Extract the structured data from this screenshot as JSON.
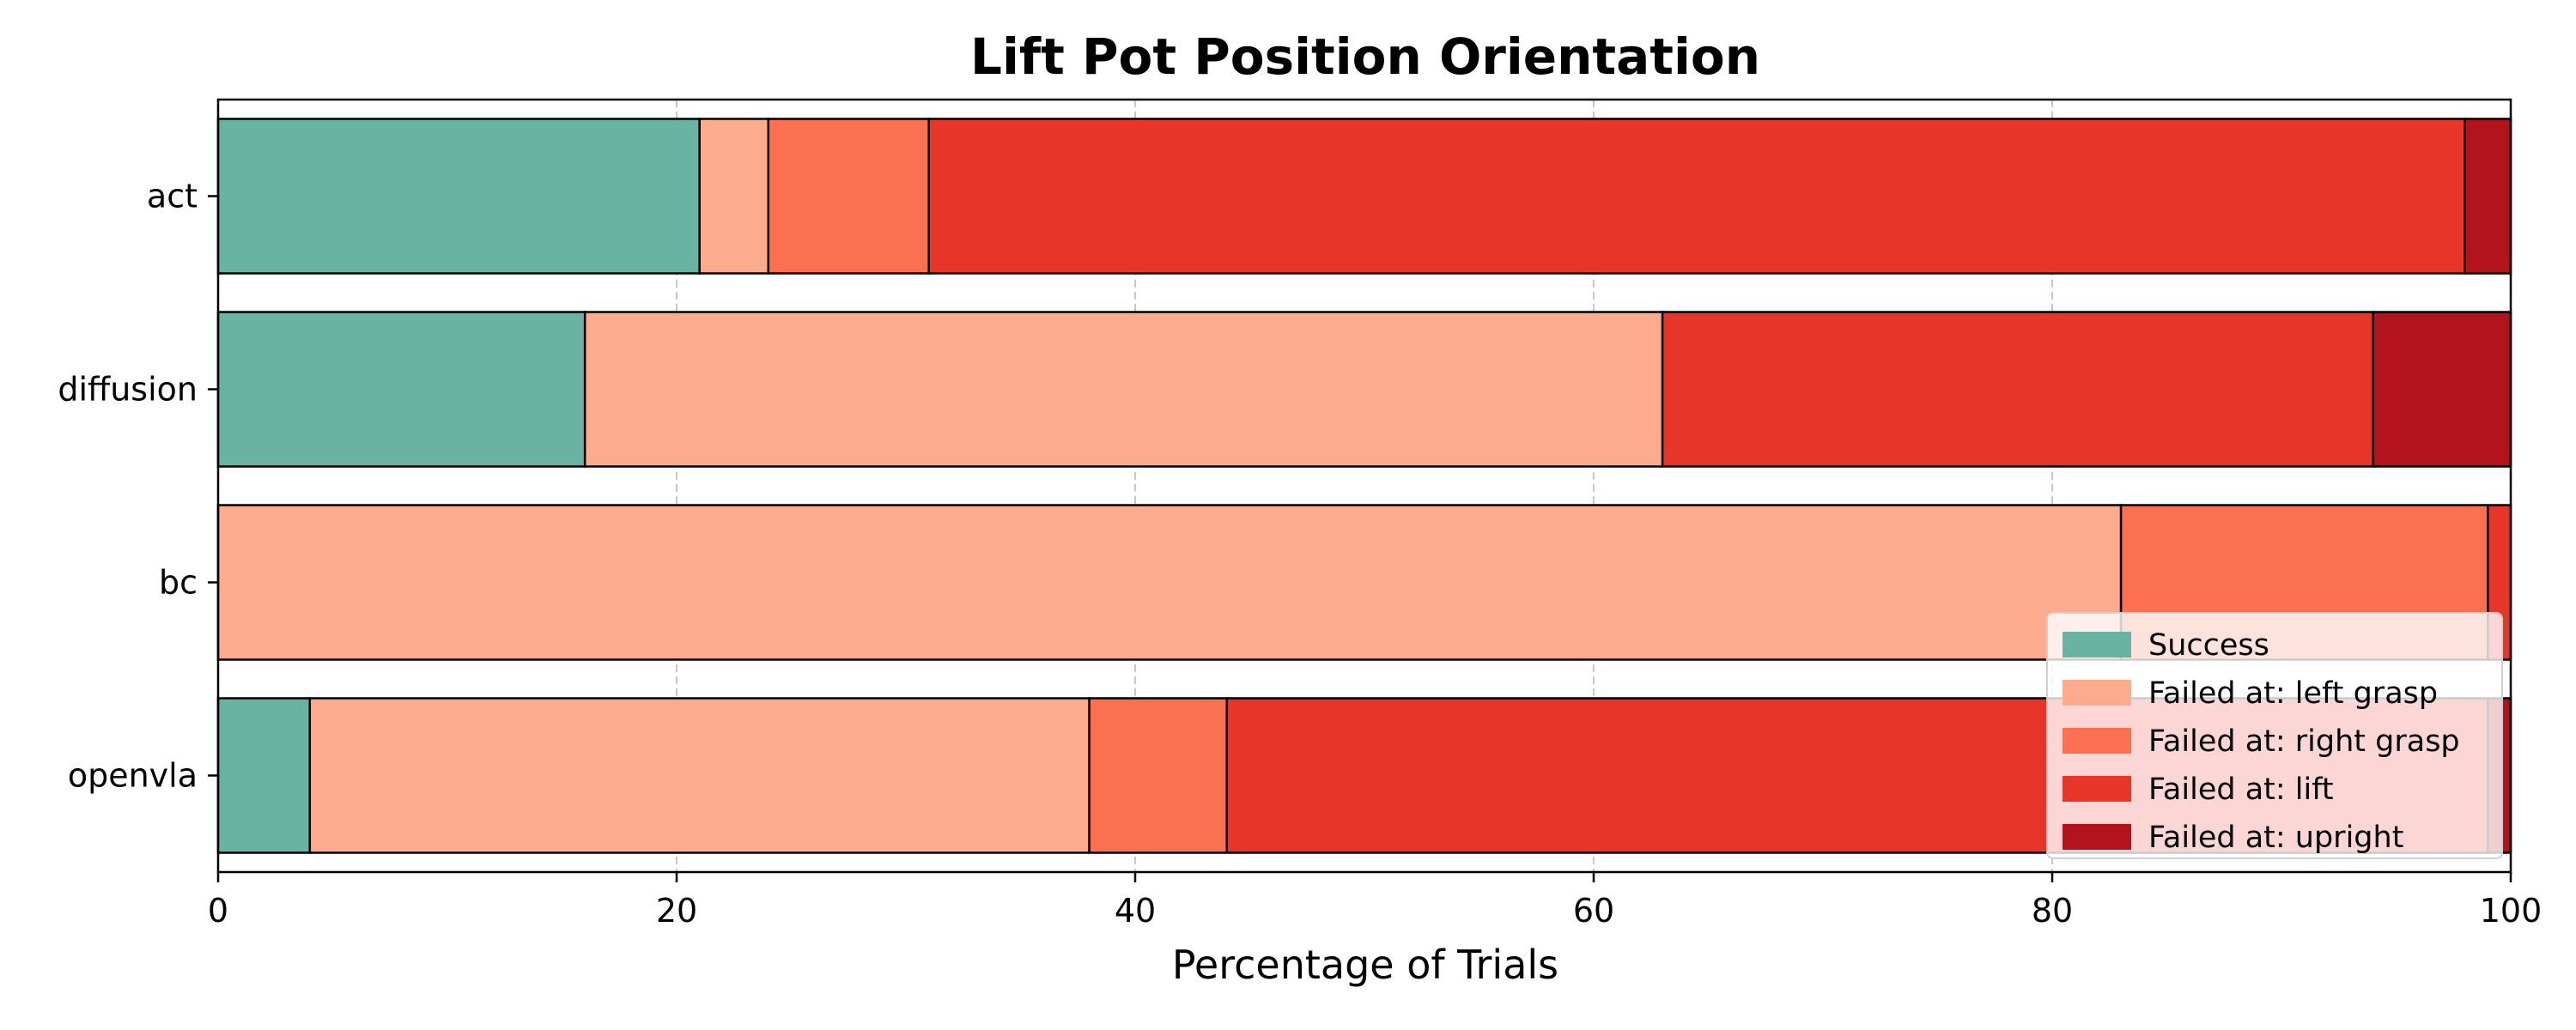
{
  "chart_data": {
    "type": "bar",
    "orientation": "horizontal",
    "stacked": true,
    "title": "Lift Pot Position Orientation",
    "xlabel": "Percentage of Trials",
    "ylabel": "",
    "xlim": [
      0,
      100
    ],
    "xticks": [
      0,
      20,
      40,
      60,
      80,
      100
    ],
    "grid": "x-dashed",
    "legend_position": "lower-right",
    "categories": [
      "act",
      "diffusion",
      "bc",
      "openvla"
    ],
    "series": [
      {
        "name": "Success",
        "color": "#69b3a2",
        "values": [
          21,
          16,
          0,
          4
        ]
      },
      {
        "name": "Failed at: left grasp",
        "color": "#fcab8f",
        "values": [
          3,
          47,
          83,
          34
        ]
      },
      {
        "name": "Failed at: right grasp",
        "color": "#fb7050",
        "values": [
          7,
          0,
          16,
          6
        ]
      },
      {
        "name": "Failed at: lift",
        "color": "#e8352a",
        "values": [
          67,
          31,
          1,
          55
        ]
      },
      {
        "name": "Failed at: upright",
        "color": "#b2131d",
        "values": [
          2,
          6,
          0,
          1
        ]
      }
    ]
  }
}
